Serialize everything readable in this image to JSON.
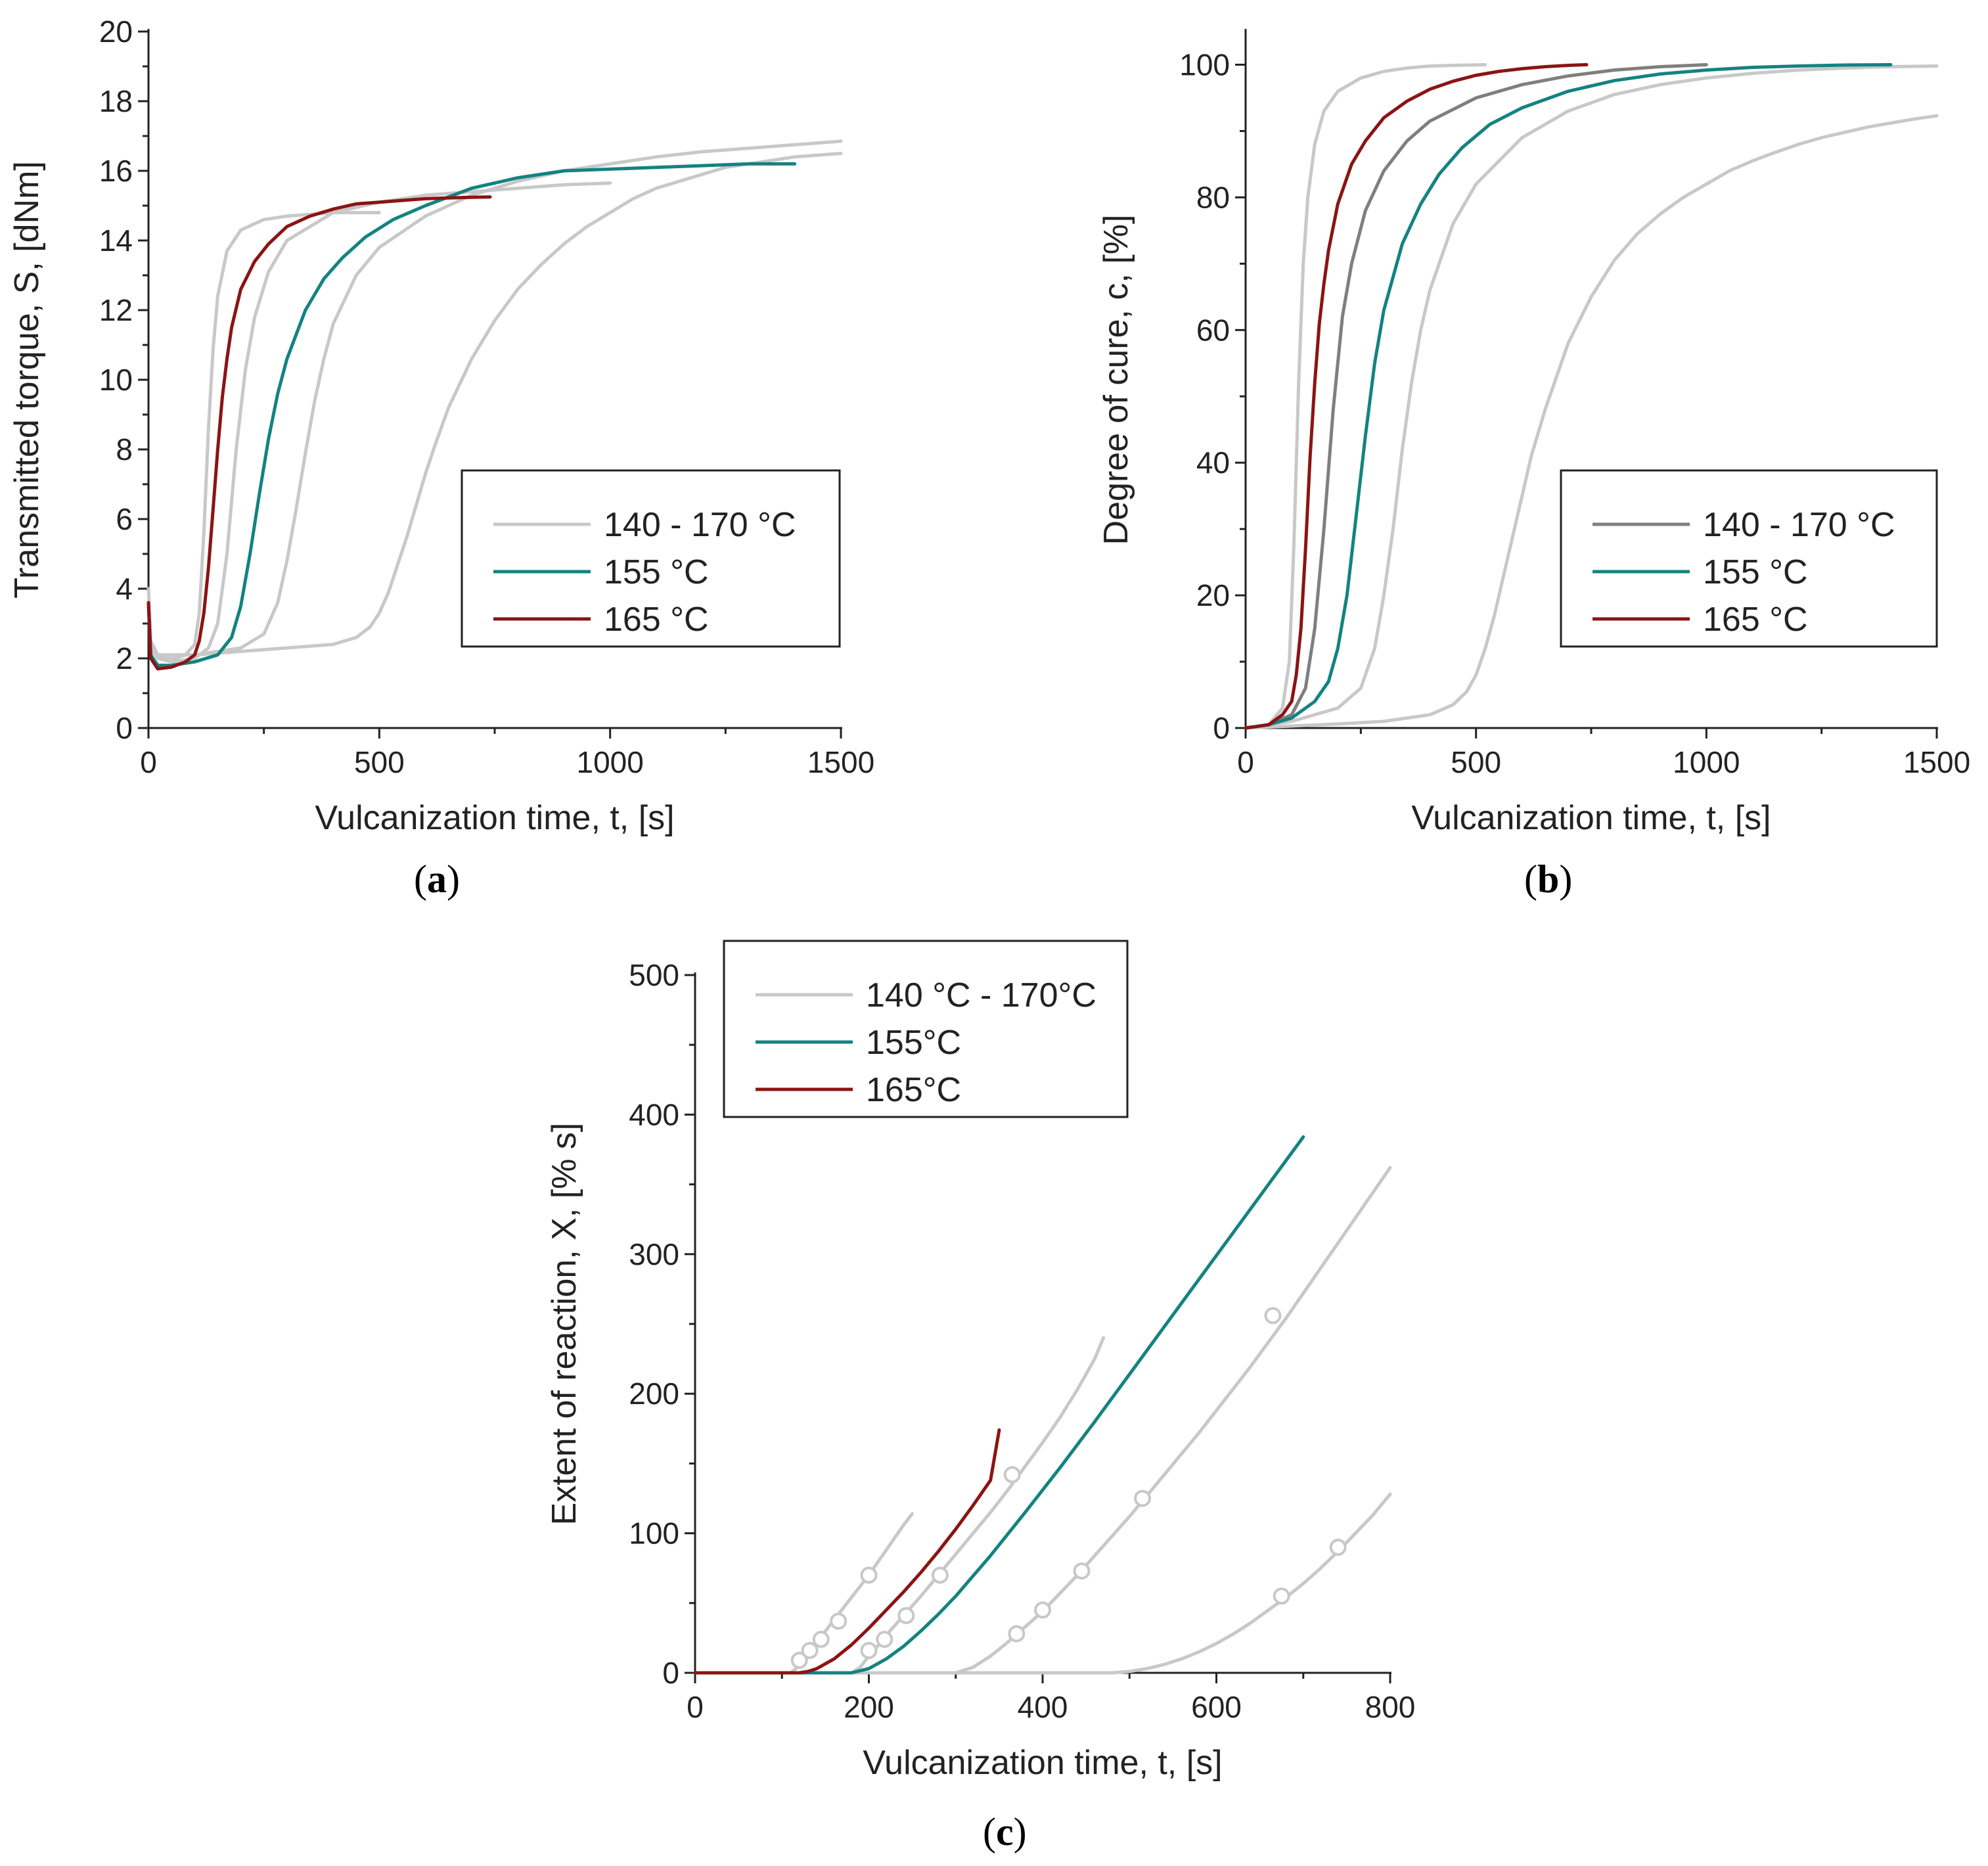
{
  "chart_data": [
    {
      "id": "a",
      "type": "line",
      "caption_letter": "a",
      "xlabel": "Vulcanization time, t, [s]",
      "ylabel": "Transmitted torque, S, [dNm]",
      "xlim": [
        0,
        1500
      ],
      "ylim": [
        0,
        20
      ],
      "xticks": [
        0,
        500,
        1000,
        1500
      ],
      "yticks": [
        0,
        2,
        4,
        6,
        8,
        10,
        12,
        14,
        16,
        18,
        20
      ],
      "legend_position": "middle-right",
      "legend": [
        {
          "label": "140 - 170 °C",
          "color": "#c8c8c8"
        },
        {
          "label": "155 °C",
          "color": "#138381"
        },
        {
          "label": "165 °C",
          "color": "#8b1414"
        }
      ],
      "series": [
        {
          "name": "140 - 170 °C",
          "color": "#c8c8c8",
          "x": [
            0,
            5,
            20,
            40,
            60,
            80,
            100,
            110,
            120,
            130,
            140,
            150,
            170,
            200,
            250,
            300,
            350,
            400,
            450,
            500
          ],
          "y": [
            4.0,
            2.5,
            2.1,
            2.0,
            2.0,
            2.1,
            2.4,
            3.3,
            5.6,
            8.6,
            10.9,
            12.4,
            13.7,
            14.3,
            14.6,
            14.7,
            14.75,
            14.8,
            14.8,
            14.8
          ]
        },
        {
          "name": "140 - 170 °C",
          "color": "#c8c8c8",
          "x": [
            0,
            5,
            20,
            50,
            100,
            130,
            150,
            170,
            190,
            210,
            230,
            260,
            300,
            400,
            500,
            600,
            700,
            800,
            900,
            1000
          ],
          "y": [
            3.6,
            2.3,
            2.0,
            1.9,
            2.0,
            2.3,
            3.0,
            5.0,
            8.0,
            10.3,
            11.8,
            13.1,
            14.0,
            14.8,
            15.1,
            15.3,
            15.4,
            15.5,
            15.6,
            15.65
          ]
        },
        {
          "name": "140 - 170 °C",
          "color": "#c8c8c8",
          "x": [
            0,
            5,
            20,
            100,
            200,
            250,
            280,
            300,
            320,
            340,
            360,
            380,
            400,
            450,
            500,
            600,
            700,
            800,
            900,
            1000,
            1100,
            1200,
            1300,
            1400,
            1500
          ],
          "y": [
            3.5,
            2.3,
            2.1,
            2.1,
            2.3,
            2.7,
            3.6,
            4.8,
            6.3,
            7.9,
            9.4,
            10.6,
            11.6,
            13.0,
            13.8,
            14.7,
            15.3,
            15.7,
            16.0,
            16.2,
            16.4,
            16.55,
            16.65,
            16.75,
            16.85
          ]
        },
        {
          "name": "140 - 170 °C",
          "color": "#c8c8c8",
          "x": [
            0,
            5,
            20,
            100,
            200,
            300,
            400,
            450,
            480,
            500,
            520,
            540,
            560,
            580,
            600,
            620,
            650,
            700,
            750,
            800,
            850,
            900,
            950,
            1000,
            1050,
            1100,
            1150,
            1200,
            1250,
            1300,
            1350,
            1400,
            1450,
            1500
          ],
          "y": [
            3.4,
            2.3,
            2.1,
            2.1,
            2.2,
            2.3,
            2.4,
            2.6,
            2.9,
            3.3,
            3.9,
            4.7,
            5.5,
            6.4,
            7.3,
            8.1,
            9.2,
            10.6,
            11.7,
            12.6,
            13.3,
            13.9,
            14.4,
            14.8,
            15.2,
            15.5,
            15.7,
            15.9,
            16.1,
            16.2,
            16.3,
            16.4,
            16.45,
            16.5
          ]
        },
        {
          "name": "155 °C",
          "color": "#138381",
          "x": [
            0,
            5,
            20,
            50,
            100,
            150,
            180,
            200,
            220,
            240,
            260,
            280,
            300,
            340,
            380,
            420,
            470,
            530,
            600,
            700,
            800,
            900,
            1000,
            1100,
            1200,
            1300,
            1400
          ],
          "y": [
            3.6,
            2.1,
            1.8,
            1.8,
            1.9,
            2.1,
            2.6,
            3.5,
            5.0,
            6.7,
            8.3,
            9.6,
            10.6,
            12.0,
            12.9,
            13.5,
            14.1,
            14.6,
            15.0,
            15.5,
            15.8,
            16.0,
            16.05,
            16.1,
            16.15,
            16.2,
            16.2
          ]
        },
        {
          "name": "165 °C",
          "color": "#8b1414",
          "x": [
            0,
            5,
            20,
            50,
            80,
            100,
            110,
            120,
            130,
            140,
            150,
            160,
            170,
            180,
            200,
            230,
            260,
            300,
            350,
            400,
            450,
            500,
            550,
            600,
            650,
            700,
            740
          ],
          "y": [
            3.6,
            2.0,
            1.7,
            1.75,
            1.9,
            2.1,
            2.5,
            3.3,
            4.6,
            6.3,
            8.0,
            9.5,
            10.6,
            11.5,
            12.6,
            13.4,
            13.9,
            14.4,
            14.7,
            14.9,
            15.05,
            15.1,
            15.15,
            15.2,
            15.22,
            15.24,
            15.25
          ]
        }
      ]
    },
    {
      "id": "b",
      "type": "line",
      "caption_letter": "b",
      "xlabel": "Vulcanization time, t, [s]",
      "ylabel": "Degree of cure, c, [%]",
      "xlim": [
        0,
        1500
      ],
      "ylim": [
        0,
        105
      ],
      "xticks": [
        0,
        500,
        1000,
        1500
      ],
      "yticks": [
        0,
        20,
        40,
        60,
        80,
        100
      ],
      "legend_position": "middle-right",
      "legend": [
        {
          "label": "140 - 170 °C",
          "color": "#7f7f7f"
        },
        {
          "label": "155 °C",
          "color": "#138381"
        },
        {
          "label": "165 °C",
          "color": "#8b1414"
        }
      ],
      "series": [
        {
          "name": "140 - 170 °C",
          "color": "#c8c8c8",
          "x": [
            0,
            50,
            80,
            95,
            105,
            115,
            125,
            135,
            150,
            170,
            200,
            250,
            300,
            350,
            400,
            450,
            520
          ],
          "y": [
            0,
            0.5,
            3,
            10,
            28,
            52,
            70,
            80,
            88,
            93,
            96,
            98,
            99,
            99.5,
            99.8,
            99.9,
            100
          ]
        },
        {
          "name": "140 - 170 °C",
          "color": "#7f7f7f",
          "x": [
            0,
            50,
            100,
            130,
            150,
            170,
            190,
            210,
            230,
            260,
            300,
            350,
            400,
            500,
            600,
            700,
            800,
            900,
            1000
          ],
          "y": [
            0,
            0.5,
            2,
            6,
            15,
            30,
            48,
            62,
            70,
            78,
            84,
            88.5,
            91.5,
            95,
            97,
            98.3,
            99.2,
            99.7,
            100
          ]
        },
        {
          "name": "140 - 170 °C",
          "color": "#c8c8c8",
          "x": [
            0,
            50,
            100,
            200,
            250,
            280,
            300,
            320,
            340,
            360,
            380,
            400,
            450,
            500,
            600,
            700,
            800,
            900,
            1000,
            1100,
            1200,
            1300,
            1400,
            1500
          ],
          "y": [
            0,
            0.5,
            1,
            3,
            6,
            12,
            20,
            30,
            42,
            52,
            60,
            66,
            76,
            82,
            89,
            93,
            95.5,
            97,
            98,
            98.7,
            99.2,
            99.5,
            99.7,
            99.8
          ]
        },
        {
          "name": "140 - 170 °C",
          "color": "#c8c8c8",
          "x": [
            0,
            100,
            200,
            300,
            400,
            450,
            480,
            500,
            520,
            540,
            560,
            580,
            600,
            620,
            650,
            700,
            750,
            800,
            850,
            900,
            950,
            1000,
            1050,
            1100,
            1150,
            1200,
            1250,
            1300,
            1350,
            1400,
            1450,
            1500
          ],
          "y": [
            0,
            0.3,
            0.6,
            1,
            2,
            3.5,
            5.5,
            8,
            12,
            17,
            23,
            29,
            35,
            41,
            48,
            58,
            65,
            70.5,
            74.5,
            77.5,
            80,
            82,
            84,
            85.5,
            86.8,
            88,
            89,
            89.8,
            90.6,
            91.2,
            91.8,
            92.3
          ]
        },
        {
          "name": "155 °C",
          "color": "#138381",
          "x": [
            0,
            50,
            100,
            150,
            180,
            200,
            220,
            240,
            260,
            280,
            300,
            340,
            380,
            420,
            470,
            530,
            600,
            700,
            800,
            900,
            1000,
            1100,
            1200,
            1300,
            1400
          ],
          "y": [
            0,
            0.5,
            1.5,
            4,
            7,
            12,
            20,
            32,
            44,
            55,
            63,
            73,
            79,
            83.5,
            87.5,
            91,
            93.5,
            96,
            97.6,
            98.6,
            99.2,
            99.6,
            99.8,
            99.95,
            100
          ]
        },
        {
          "name": "165 °C",
          "color": "#8b1414",
          "x": [
            0,
            50,
            80,
            100,
            110,
            120,
            130,
            140,
            150,
            160,
            170,
            180,
            200,
            230,
            260,
            300,
            350,
            400,
            450,
            500,
            550,
            600,
            650,
            700,
            740
          ],
          "y": [
            0,
            0.5,
            2,
            4,
            8,
            15,
            27,
            41,
            52,
            61,
            67,
            72,
            79,
            85,
            88.5,
            92,
            94.5,
            96.3,
            97.5,
            98.4,
            99,
            99.4,
            99.7,
            99.9,
            100
          ]
        }
      ]
    },
    {
      "id": "c",
      "type": "line",
      "caption_letter": "c",
      "xlabel": "Vulcanization time, t, [s]",
      "ylabel": "Extent of reaction, X, [% s]",
      "xlim": [
        0,
        800
      ],
      "ylim": [
        0,
        500
      ],
      "xticks": [
        0,
        200,
        400,
        600,
        800
      ],
      "yticks": [
        0,
        100,
        200,
        300,
        400,
        500
      ],
      "legend_position": "top-left",
      "legend": [
        {
          "label": "140 °C - 170°C",
          "color": "#c8c8c8"
        },
        {
          "label": "155°C",
          "color": "#138381"
        },
        {
          "label": "165°C",
          "color": "#8b1414"
        }
      ],
      "series": [
        {
          "name": "140 °C - 170°C",
          "color": "#c8c8c8",
          "x": [
            0,
            110,
            120,
            130,
            140,
            150,
            160,
            170,
            180,
            190,
            200,
            210,
            220,
            230,
            240,
            250
          ],
          "y": [
            0,
            0,
            5,
            13,
            22,
            30,
            38,
            46,
            54,
            62,
            70,
            79,
            88,
            97,
            106,
            114
          ],
          "markers": [
            [
              120,
              9
            ],
            [
              132,
              16
            ],
            [
              145,
              24
            ],
            [
              165,
              37
            ],
            [
              200,
              70
            ]
          ]
        },
        {
          "name": "140 °C - 170°C",
          "color": "#c8c8c8",
          "x": [
            0,
            180,
            190,
            200,
            210,
            220,
            240,
            260,
            280,
            300,
            320,
            340,
            360,
            380,
            400,
            420,
            440,
            460,
            470
          ],
          "y": [
            0,
            0,
            4,
            12,
            19,
            27,
            41,
            55,
            70,
            85,
            100,
            115,
            131,
            148,
            165,
            183,
            203,
            225,
            240
          ],
          "markers": [
            [
              200,
              16
            ],
            [
              218,
              24
            ],
            [
              243,
              41
            ],
            [
              282,
              70
            ],
            [
              365,
              142
            ]
          ]
        },
        {
          "name": "140 °C - 170°C",
          "color": "#c8c8c8",
          "x": [
            0,
            300,
            320,
            340,
            360,
            380,
            400,
            420,
            440,
            460,
            480,
            500,
            520,
            540,
            560,
            580,
            600,
            620,
            640,
            660,
            680,
            700,
            720,
            740,
            760,
            780,
            800
          ],
          "y": [
            0,
            0,
            4,
            12,
            22,
            33,
            44,
            57,
            70,
            84,
            98,
            112,
            127,
            142,
            157,
            172,
            188,
            204,
            220,
            237,
            254,
            272,
            290,
            308,
            326,
            344,
            362
          ],
          "markers": [
            [
              370,
              28
            ],
            [
              400,
              45
            ],
            [
              445,
              73
            ],
            [
              515,
              125
            ],
            [
              665,
              256
            ]
          ]
        },
        {
          "name": "140 °C - 170°C",
          "color": "#c8c8c8",
          "x": [
            0,
            480,
            500,
            520,
            540,
            560,
            580,
            600,
            620,
            640,
            660,
            680,
            700,
            720,
            740,
            760,
            780,
            800
          ],
          "y": [
            0,
            0,
            1,
            3,
            6,
            10,
            15,
            21,
            28,
            36,
            45,
            54,
            64,
            75,
            87,
            100,
            113,
            128
          ],
          "markers": [
            [
              675,
              55
            ],
            [
              740,
              90
            ]
          ]
        },
        {
          "name": "155°C",
          "color": "#138381",
          "x": [
            0,
            180,
            200,
            220,
            240,
            260,
            280,
            300,
            340,
            380,
            420,
            460,
            500,
            540,
            580,
            620,
            660,
            700
          ],
          "y": [
            0,
            0,
            3,
            10,
            19,
            30,
            42,
            55,
            84,
            115,
            147,
            180,
            214,
            248,
            282,
            316,
            350,
            384
          ]
        },
        {
          "name": "165°C",
          "color": "#8b1414",
          "x": [
            0,
            120,
            130,
            140,
            160,
            180,
            200,
            220,
            240,
            260,
            280,
            300,
            320,
            340,
            350
          ],
          "y": [
            0,
            0,
            1,
            3,
            10,
            20,
            32,
            45,
            58,
            72,
            87,
            103,
            120,
            138,
            174
          ]
        }
      ]
    }
  ]
}
